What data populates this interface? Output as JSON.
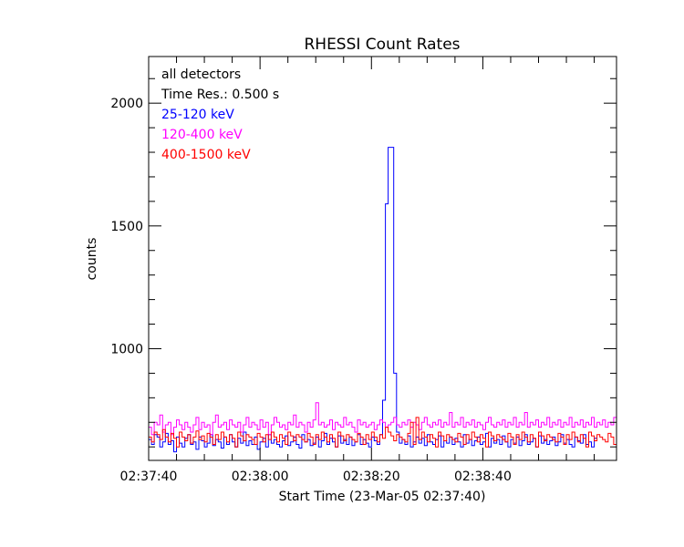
{
  "chart_data": {
    "type": "line",
    "title": "RHESSI Count Rates",
    "xlabel": "Start Time (23-Mar-05 02:37:40)",
    "ylabel": "counts",
    "x_tick_labels": [
      "02:37:40",
      "02:38:00",
      "02:38:20",
      "02:38:40"
    ],
    "x_tick_seconds": [
      0,
      20,
      40,
      60
    ],
    "y_tick_labels": [
      "1000",
      "1500",
      "2000"
    ],
    "y_tick_values": [
      1000,
      1500,
      2000
    ],
    "xlim_seconds": [
      0,
      84
    ],
    "ylim": [
      545,
      2190
    ],
    "time_resolution_s": 0.5,
    "grid": false,
    "legend_lines": [
      {
        "text": "all detectors",
        "color": "#000000"
      },
      {
        "text": "Time Res.: 0.500 s",
        "color": "#000000"
      },
      {
        "text": "25-120 keV",
        "color": "#0000ff"
      },
      {
        "text": "120-400 keV",
        "color": "#ff00ff"
      },
      {
        "text": "400-1500 keV",
        "color": "#ff0000"
      }
    ],
    "series": [
      {
        "name": "25-120 keV",
        "color": "#0000ff",
        "values": [
          630,
          610,
          650,
          640,
          600,
          620,
          655,
          610,
          625,
          580,
          640,
          615,
          600,
          635,
          650,
          610,
          620,
          590,
          640,
          625,
          600,
          615,
          650,
          605,
          630,
          620,
          595,
          640,
          610,
          650,
          620,
          600,
          635,
          615,
          660,
          605,
          625,
          610,
          640,
          590,
          620,
          635,
          600,
          650,
          615,
          630,
          610,
          600,
          625,
          645,
          605,
          620,
          640,
          610,
          595,
          650,
          620,
          630,
          605,
          615,
          640,
          600,
          625,
          655,
          610,
          635,
          620,
          600,
          645,
          615,
          630,
          610,
          640,
          605,
          620,
          650,
          610,
          630,
          615,
          600,
          640,
          625,
          610,
          650,
          790,
          1590,
          1820,
          1820,
          900,
          660,
          615,
          630,
          610,
          645,
          600,
          620,
          640,
          615,
          635,
          605,
          650,
          620,
          610,
          630,
          645,
          600,
          625,
          615,
          640,
          610,
          635,
          620,
          600,
          650,
          615,
          630,
          605,
          625,
          640,
          610,
          620,
          655,
          600,
          635,
          615,
          630,
          610,
          645,
          620,
          600,
          630,
          615,
          640,
          605,
          625,
          650,
          610,
          620,
          635,
          600,
          645,
          615,
          630,
          610,
          625,
          640,
          605,
          620,
          650,
          615,
          630,
          610,
          600,
          640,
          625,
          615,
          650,
          610,
          620,
          600,
          635
        ]
      },
      {
        "name": "120-400 keV",
        "color": "#ff00ff",
        "values": [
          680,
          650,
          700,
          690,
          730,
          660,
          690,
          700,
          650,
          680,
          710,
          690,
          670,
          700,
          680,
          660,
          690,
          720,
          670,
          700,
          680,
          690,
          650,
          700,
          730,
          680,
          690,
          700,
          670,
          710,
          690,
          680,
          700,
          660,
          690,
          720,
          680,
          700,
          690,
          670,
          710,
          680,
          700,
          650,
          690,
          720,
          700,
          680,
          690,
          670,
          700,
          690,
          730,
          680,
          700,
          690,
          660,
          700,
          680,
          710,
          780,
          690,
          700,
          680,
          690,
          710,
          670,
          700,
          690,
          680,
          720,
          690,
          700,
          680,
          660,
          710,
          690,
          700,
          680,
          690,
          700,
          670,
          690,
          710,
          700,
          680,
          690,
          700,
          720,
          690,
          680,
          700,
          690,
          710,
          680,
          700,
          690,
          670,
          700,
          720,
          690,
          680,
          700,
          690,
          710,
          680,
          700,
          690,
          740,
          680,
          700,
          690,
          720,
          680,
          700,
          690,
          710,
          680,
          700,
          690,
          670,
          700,
          720,
          690,
          680,
          700,
          690,
          710,
          680,
          700,
          690,
          720,
          680,
          700,
          690,
          740,
          680,
          700,
          690,
          710,
          680,
          700,
          690,
          720,
          680,
          700,
          690,
          710,
          680,
          700,
          690,
          720,
          680,
          700,
          690,
          710,
          680,
          700,
          690,
          720,
          680,
          700,
          690,
          710,
          680,
          700,
          690,
          720
        ]
      },
      {
        "name": "400-1500 keV",
        "color": "#ff0000",
        "values": [
          640,
          620,
          660,
          650,
          630,
          670,
          640,
          620,
          655,
          635,
          600,
          660,
          640,
          625,
          650,
          615,
          640,
          665,
          630,
          645,
          620,
          655,
          640,
          610,
          650,
          630,
          660,
          640,
          620,
          650,
          635,
          600,
          660,
          645,
          625,
          650,
          640,
          630,
          610,
          655,
          640,
          620,
          650,
          630,
          660,
          640,
          620,
          650,
          635,
          610,
          660,
          645,
          625,
          650,
          640,
          630,
          620,
          655,
          640,
          610,
          650,
          630,
          660,
          640,
          620,
          650,
          635,
          600,
          660,
          645,
          625,
          650,
          640,
          630,
          620,
          655,
          640,
          610,
          650,
          630,
          660,
          640,
          620,
          650,
          635,
          680,
          660,
          645,
          625,
          650,
          640,
          630,
          620,
          655,
          700,
          610,
          720,
          630,
          660,
          640,
          620,
          650,
          635,
          600,
          660,
          645,
          625,
          650,
          640,
          630,
          620,
          655,
          640,
          610,
          650,
          630,
          660,
          640,
          620,
          650,
          635,
          600,
          660,
          645,
          625,
          650,
          640,
          630,
          620,
          655,
          640,
          610,
          650,
          630,
          660,
          640,
          620,
          650,
          635,
          600,
          660,
          645,
          625,
          650,
          640,
          630,
          620,
          655,
          640,
          610,
          650,
          630,
          660,
          640,
          620,
          650,
          635,
          600,
          660,
          645,
          625,
          650,
          640,
          630,
          620,
          655,
          640,
          610
        ]
      }
    ]
  }
}
